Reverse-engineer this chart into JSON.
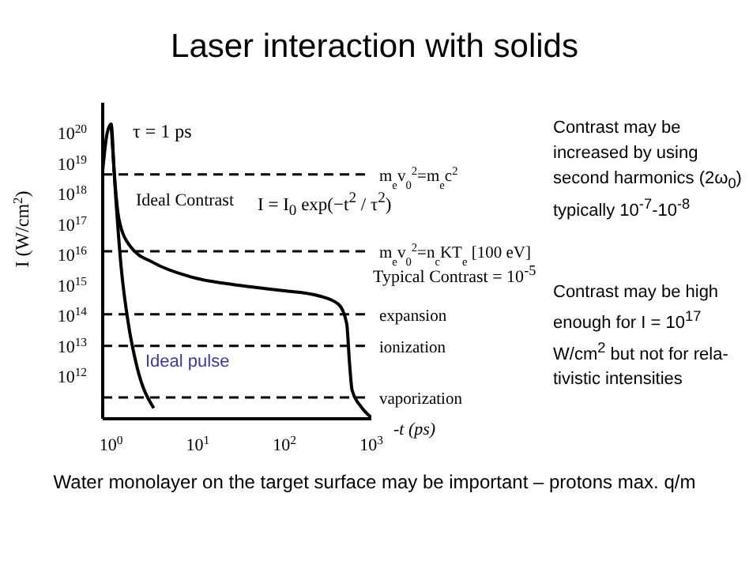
{
  "chart_data": {
    "type": "line",
    "title": "Laser interaction with solids",
    "xlabel": "-t (ps)",
    "ylabel": "I (W/cm$^{2}$)",
    "log": "xy",
    "marker": "none",
    "line_style": "solid",
    "xlim": [
      0.8,
      1000
    ],
    "ylim": [
      40000000000.0,
      1e+21
    ],
    "xticks": [
      {
        "value": 1,
        "label": "10$^{0}$"
      },
      {
        "value": 10,
        "label": "10$^{1}$"
      },
      {
        "value": 100,
        "label": "10$^{2}$"
      },
      {
        "value": 1000,
        "label": "10$^{3}$"
      }
    ],
    "yticks": [
      {
        "value": 1000000000000.0,
        "label": "10$^{12}$"
      },
      {
        "value": 10000000000000.0,
        "label": "10$^{13}$"
      },
      {
        "value": 100000000000000.0,
        "label": "10$^{14}$"
      },
      {
        "value": 1000000000000000.0,
        "label": "10$^{15}$"
      },
      {
        "value": 1e+16,
        "label": "10$^{16}$"
      },
      {
        "value": 1e+17,
        "label": "10$^{17}$"
      },
      {
        "value": 1e+18,
        "label": "10$^{18}$"
      },
      {
        "value": 1e+19,
        "label": "10$^{19}$"
      },
      {
        "value": 1e+20,
        "label": "10$^{20}$"
      }
    ],
    "series": [
      {
        "color": "#000000",
        "x": [
          0.8,
          0.9,
          1.0,
          1.09,
          1.23,
          1.66,
          3.1,
          8.1,
          28,
          95,
          250,
          420,
          520,
          560,
          600,
          760,
          1000
        ],
        "values": [
          6e+18,
          1e+20,
          2e+20,
          4.4e+18,
          1.5e+17,
          1.9e+16,
          5400000000000000.0,
          1900000000000000.0,
          1000000000000000.0,
          660000000000000.0,
          440000000000000.0,
          230000000000000.0,
          54000000000000.0,
          2800000000000.0,
          350000000000.0,
          100000000000.0,
          44000000000.0
        ]
      },
      {
        "color": "#000000",
        "x": [
          1.0,
          1.13,
          1.31,
          1.58,
          2.0,
          3.1
        ],
        "values": [
          2e+20,
          8e+17,
          3500000000000000.0,
          54000000000000.0,
          1900000000000.0,
          90000000000.0
        ]
      }
    ],
    "ref_lines": [
      {
        "axis": "y",
        "value": 4.4e+18,
        "label": "m$_{e}$v$_{0}$$^{2}$=m$_{e}$c$^{2}$",
        "line_style": "dashed",
        "color": "#000000"
      },
      {
        "axis": "y",
        "value": 1.3e+16,
        "label": "m$_{e}$v$_{0}$$^{2}$=n$_{c}$KT$_{e}$ [100 eV]",
        "line_style": "dashed",
        "color": "#000000"
      },
      {
        "axis": "y",
        "value": 110000000000000.0,
        "label": "expansion",
        "line_style": "dashed",
        "color": "#000000"
      },
      {
        "axis": "y",
        "value": 10000000000000.0,
        "label": "ionization",
        "line_style": "dashed",
        "color": "#000000"
      },
      {
        "axis": "y",
        "value": 200000000000.0,
        "label": "vaporization",
        "line_style": "dashed",
        "color": "#000000"
      }
    ],
    "annotations": [
      "τ = 1 ps",
      "Ideal Contrast",
      "I = I$_{0}$ exp(−t$^{2}$ / τ$^{2}$)",
      "Typical Contrast = 10$^{-5}$",
      "Ideal pulse",
      "Contrast may be increased  by using second harmonics (2ω$_{0}$) typically 10$^{-7}$-10$^{-8}$",
      "Contrast may be high enough for I = 10$^{17}$ W/cm$^{2}$ but not for rela-tivistic intensities",
      "Water monolayer on the target surface may be important – protons max. q/m"
    ]
  }
}
